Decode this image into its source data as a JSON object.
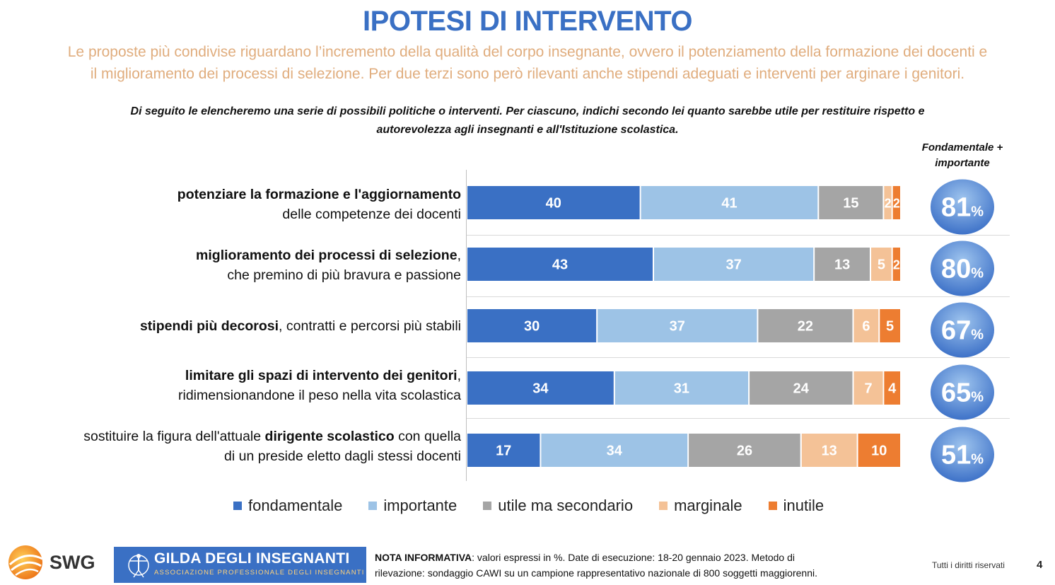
{
  "title": "IPOTESI DI INTERVENTO",
  "subtitle_line1": "Le proposte più condivise riguardano l’incremento della qualità del corpo insegnante, ovvero il potenziamento della formazione dei docenti e",
  "subtitle_line2": "il miglioramento dei processi di selezione. Per due terzi sono però rilevanti anche stipendi adeguati e interventi per arginare i genitori.",
  "question_line1": "Di seguito le elencheremo una serie di possibili politiche o interventi. Per ciascuno, indichi secondo lei quanto sarebbe utile per restituire rispetto e",
  "question_line2": "autorevolezza agli insegnanti e all'Istituzione scolastica.",
  "total_header_line1": "Fondamentale +",
  "total_header_line2": "importante",
  "rows": [
    {
      "bold1": "potenziare la formazione e l'aggiornamento",
      "plain1": "",
      "pre2": "",
      "bold2": "",
      "plain2": "delle competenze dei docenti"
    },
    {
      "bold1": "miglioramento dei processi di selezione",
      "plain1": ",",
      "pre2": "",
      "bold2": "",
      "plain2": "che premino di più bravura e passione"
    },
    {
      "bold1": "stipendi più decorosi",
      "plain1": ", contratti e percorsi più stabili",
      "pre2": "",
      "bold2": "",
      "plain2": ""
    },
    {
      "bold1": "limitare gli spazi di intervento dei genitori",
      "plain1": ",",
      "pre2": "",
      "bold2": "",
      "plain2": "ridimensionandone il peso nella vita scolastica"
    },
    {
      "bold1": "",
      "plain1": "sostituire la figura dell'attuale ",
      "bold1b": "dirigente scolastico",
      "plain1b": " con quella",
      "plain2": "di un preside eletto dagli stessi docenti"
    }
  ],
  "chart_data": {
    "type": "bar",
    "orientation": "horizontal-stacked-100",
    "unit": "%",
    "categories": [
      "potenziare la formazione e l'aggiornamento delle competenze dei docenti",
      "miglioramento dei processi di selezione, che premino di più bravura e passione",
      "stipendi più decorosi, contratti e percorsi più stabili",
      "limitare gli spazi di intervento dei genitori, ridimensionandone il peso nella vita scolastica",
      "sostituire la figura dell'attuale dirigente scolastico con quella di un preside eletto dagli stessi docenti"
    ],
    "series": [
      {
        "name": "fondamentale",
        "color": "#3a70c4",
        "label_color": "#ffffff",
        "values": [
          40,
          43,
          30,
          34,
          17
        ]
      },
      {
        "name": "importante",
        "color": "#9dc3e6",
        "label_color": "#ffffff",
        "values": [
          41,
          37,
          37,
          31,
          34
        ]
      },
      {
        "name": "utile ma secondario",
        "color": "#a5a5a5",
        "label_color": "#ffffff",
        "values": [
          15,
          13,
          22,
          24,
          26
        ]
      },
      {
        "name": "marginale",
        "color": "#f4c297",
        "label_color": "#ffffff",
        "values": [
          2,
          5,
          6,
          7,
          13
        ]
      },
      {
        "name": "inutile",
        "color": "#ed7d31",
        "label_color": "#ffffff",
        "values": [
          2,
          2,
          5,
          4,
          10
        ]
      }
    ],
    "totals": {
      "label": "Fondamentale + importante",
      "values": [
        81,
        80,
        67,
        65,
        51
      ],
      "suffix": "%"
    },
    "legend_position": "bottom"
  },
  "footer": {
    "swg": "SWG",
    "gilda_name": "GILDA DEGLI INSEGNANTI",
    "gilda_sub": "ASSOCIAZIONE PROFESSIONALE DEGLI INSEGNANTI",
    "note_bold": "NOTA INFORMATIVA",
    "note_line1": ": valori espressi in %. Date di esecuzione: 18-20 gennaio 2023.  Metodo di",
    "note_line2": "rilevazione: sondaggio CAWI su un campione rappresentativo nazionale di 800 soggetti maggiorenni.",
    "rights": "Tutti i diritti riservati",
    "page": "4"
  }
}
